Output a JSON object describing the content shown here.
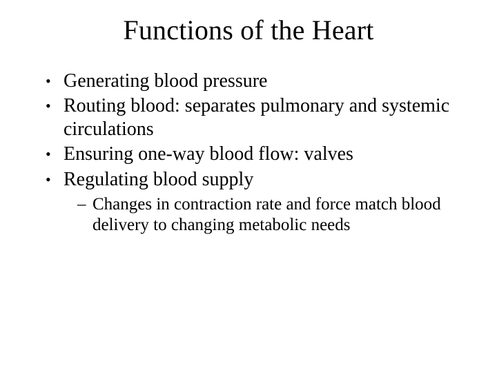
{
  "slide": {
    "title": "Functions of the Heart",
    "title_fontsize": 40,
    "body_fontsize": 28,
    "sub_fontsize": 25,
    "background_color": "#ffffff",
    "text_color": "#000000",
    "font_family": "Georgia, 'Times New Roman', serif",
    "bullets": [
      {
        "text": "Generating blood pressure"
      },
      {
        "text": "Routing blood: separates pulmonary and systemic circulations"
      },
      {
        "text": "Ensuring one-way blood flow: valves"
      },
      {
        "text": "Regulating blood supply",
        "sub": [
          {
            "text": "Changes in contraction rate and force match blood delivery to changing metabolic needs"
          }
        ]
      }
    ]
  }
}
